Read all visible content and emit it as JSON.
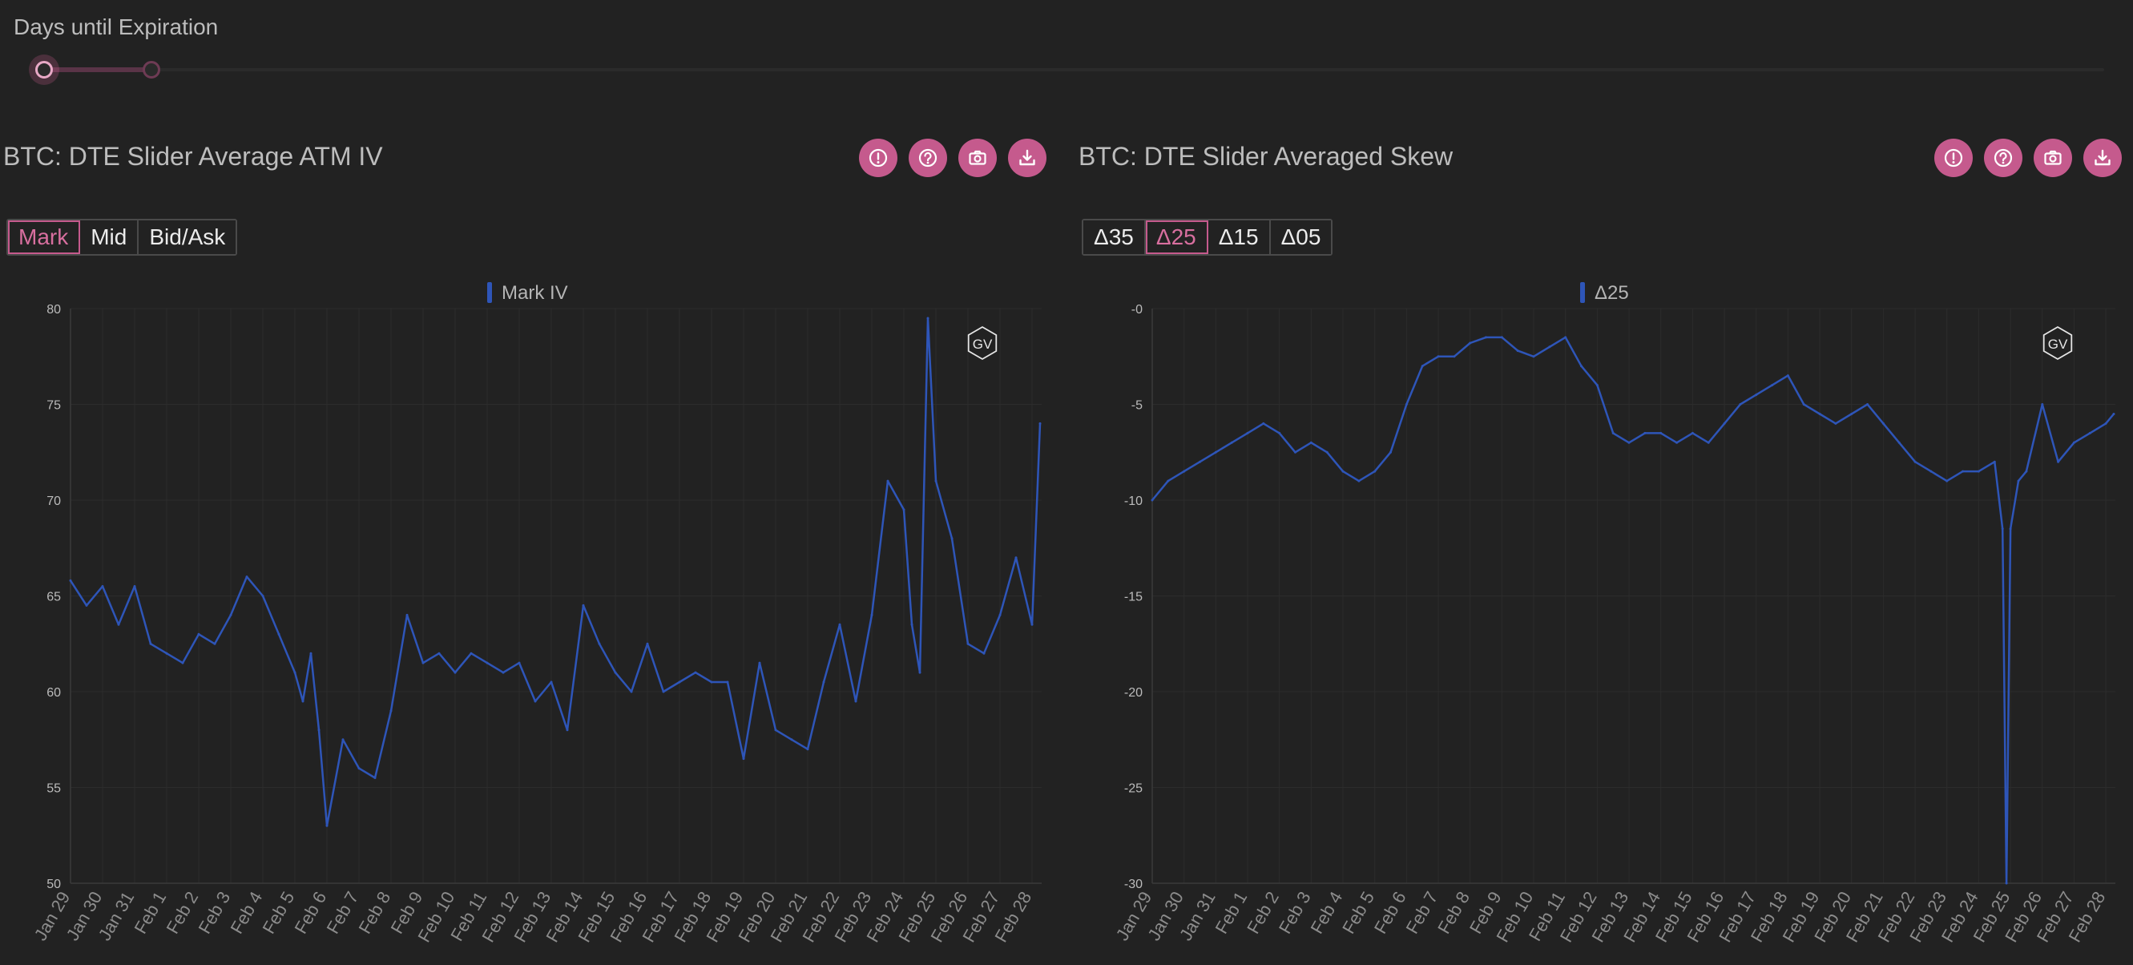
{
  "slider": {
    "label": "Days until Expiration"
  },
  "panels": [
    {
      "title": "BTC: DTE Slider Average ATM IV",
      "buttons": [
        {
          "label": "Mark",
          "active": true
        },
        {
          "label": "Mid",
          "active": false
        },
        {
          "label": "Bid/Ask",
          "active": false
        }
      ]
    },
    {
      "title": "BTC: DTE Slider Averaged Skew",
      "buttons": [
        {
          "label": "Δ35",
          "active": false
        },
        {
          "label": "Δ25",
          "active": true
        },
        {
          "label": "Δ15",
          "active": false
        },
        {
          "label": "Δ05",
          "active": false
        }
      ]
    }
  ],
  "toolbar_icons": [
    "info-icon",
    "help-icon",
    "camera-icon",
    "download-icon"
  ],
  "colors": {
    "accent": "#c55a8d",
    "series": "#2e55b8",
    "background": "#222222"
  },
  "watermark": "GV",
  "chart_data": [
    {
      "type": "line",
      "legend": "Mark IV",
      "ylim": [
        50,
        80
      ],
      "yticks": [
        50,
        55,
        60,
        65,
        70,
        75,
        80
      ],
      "xticks": [
        "Jan 29",
        "Jan 30",
        "Jan 31",
        "Feb 1",
        "Feb 2",
        "Feb 3",
        "Feb 4",
        "Feb 5",
        "Feb 6",
        "Feb 7",
        "Feb 8",
        "Feb 9",
        "Feb 10",
        "Feb 11",
        "Feb 12",
        "Feb 13",
        "Feb 14",
        "Feb 15",
        "Feb 16",
        "Feb 17",
        "Feb 18",
        "Feb 19",
        "Feb 20",
        "Feb 21",
        "Feb 22",
        "Feb 23",
        "Feb 24",
        "Feb 25",
        "Feb 26",
        "Feb 27",
        "Feb 28"
      ],
      "x_start": "Jan 29",
      "x_end": "Feb 28",
      "x": [
        "Jan 29 00:00",
        "Jan 29 12:00",
        "Jan 30 00:00",
        "Jan 30 12:00",
        "Jan 31 00:00",
        "Jan 31 12:00",
        "Feb 1 00:00",
        "Feb 1 12:00",
        "Feb 2 00:00",
        "Feb 2 12:00",
        "Feb 3 00:00",
        "Feb 3 12:00",
        "Feb 4 00:00",
        "Feb 4 12:00",
        "Feb 5 00:00",
        "Feb 5 06:00",
        "Feb 5 12:00",
        "Feb 5 18:00",
        "Feb 6 00:00",
        "Feb 6 12:00",
        "Feb 7 00:00",
        "Feb 7 12:00",
        "Feb 8 00:00",
        "Feb 8 12:00",
        "Feb 9 00:00",
        "Feb 9 12:00",
        "Feb 10 00:00",
        "Feb 10 12:00",
        "Feb 11 00:00",
        "Feb 11 12:00",
        "Feb 12 00:00",
        "Feb 12 12:00",
        "Feb 13 00:00",
        "Feb 13 12:00",
        "Feb 14 00:00",
        "Feb 14 12:00",
        "Feb 15 00:00",
        "Feb 15 12:00",
        "Feb 16 00:00",
        "Feb 16 12:00",
        "Feb 17 00:00",
        "Feb 17 12:00",
        "Feb 18 00:00",
        "Feb 18 12:00",
        "Feb 19 00:00",
        "Feb 19 12:00",
        "Feb 20 00:00",
        "Feb 20 12:00",
        "Feb 21 00:00",
        "Feb 21 12:00",
        "Feb 22 00:00",
        "Feb 22 12:00",
        "Feb 23 00:00",
        "Feb 23 12:00",
        "Feb 24 00:00",
        "Feb 24 06:00",
        "Feb 24 12:00",
        "Feb 24 18:00",
        "Feb 25 00:00",
        "Feb 25 12:00",
        "Feb 26 00:00",
        "Feb 26 12:00",
        "Feb 27 00:00",
        "Feb 27 12:00",
        "Feb 28 00:00",
        "Feb 28 06:00"
      ],
      "values": [
        65.8,
        64.5,
        65.5,
        63.5,
        65.5,
        62.5,
        62.0,
        61.5,
        63.0,
        62.5,
        64.0,
        66.0,
        65.0,
        63.0,
        61.0,
        59.5,
        62.0,
        58.0,
        53.0,
        57.5,
        56.0,
        55.5,
        59.0,
        64.0,
        61.5,
        62.0,
        61.0,
        62.0,
        61.5,
        61.0,
        61.5,
        59.5,
        60.5,
        58.0,
        64.5,
        62.5,
        61.0,
        60.0,
        62.5,
        60.0,
        60.5,
        61.0,
        60.5,
        60.5,
        56.5,
        61.5,
        58.0,
        57.5,
        57.0,
        60.5,
        63.5,
        59.5,
        64.0,
        71.0,
        69.5,
        63.5,
        61.0,
        79.5,
        71.0,
        68.0,
        62.5,
        62.0,
        64.0,
        67.0,
        63.5,
        74.0
      ]
    },
    {
      "type": "line",
      "legend": "Δ25",
      "ylim": [
        -30,
        0
      ],
      "yticks": [
        0,
        -5,
        -10,
        -15,
        -20,
        -25,
        -30
      ],
      "xticks": [
        "Jan 29",
        "Jan 30",
        "Jan 31",
        "Feb 1",
        "Feb 2",
        "Feb 3",
        "Feb 4",
        "Feb 5",
        "Feb 6",
        "Feb 7",
        "Feb 8",
        "Feb 9",
        "Feb 10",
        "Feb 11",
        "Feb 12",
        "Feb 13",
        "Feb 14",
        "Feb 15",
        "Feb 16",
        "Feb 17",
        "Feb 18",
        "Feb 19",
        "Feb 20",
        "Feb 21",
        "Feb 22",
        "Feb 23",
        "Feb 24",
        "Feb 25",
        "Feb 26",
        "Feb 27",
        "Feb 28"
      ],
      "x_start": "Jan 29",
      "x_end": "Feb 28",
      "x": [
        "Jan 29 00:00",
        "Jan 29 12:00",
        "Jan 30 00:00",
        "Jan 30 12:00",
        "Jan 31 00:00",
        "Jan 31 12:00",
        "Feb 1 00:00",
        "Feb 1 12:00",
        "Feb 2 00:00",
        "Feb 2 12:00",
        "Feb 3 00:00",
        "Feb 3 12:00",
        "Feb 4 00:00",
        "Feb 4 12:00",
        "Feb 5 00:00",
        "Feb 5 12:00",
        "Feb 6 00:00",
        "Feb 6 12:00",
        "Feb 7 00:00",
        "Feb 7 12:00",
        "Feb 8 00:00",
        "Feb 8 12:00",
        "Feb 9 00:00",
        "Feb 9 12:00",
        "Feb 10 00:00",
        "Feb 10 12:00",
        "Feb 11 00:00",
        "Feb 11 12:00",
        "Feb 12 00:00",
        "Feb 12 12:00",
        "Feb 13 00:00",
        "Feb 13 12:00",
        "Feb 14 00:00",
        "Feb 14 12:00",
        "Feb 15 00:00",
        "Feb 15 12:00",
        "Feb 16 00:00",
        "Feb 16 12:00",
        "Feb 17 00:00",
        "Feb 17 12:00",
        "Feb 18 00:00",
        "Feb 18 12:00",
        "Feb 19 00:00",
        "Feb 19 12:00",
        "Feb 20 00:00",
        "Feb 20 12:00",
        "Feb 21 00:00",
        "Feb 21 12:00",
        "Feb 22 00:00",
        "Feb 22 12:00",
        "Feb 23 00:00",
        "Feb 23 12:00",
        "Feb 24 00:00",
        "Feb 24 12:00",
        "Feb 24 18:00",
        "Feb 24 21:00",
        "Feb 25 00:00",
        "Feb 25 06:00",
        "Feb 25 12:00",
        "Feb 26 00:00",
        "Feb 26 12:00",
        "Feb 27 00:00",
        "Feb 27 12:00",
        "Feb 28 00:00",
        "Feb 28 06:00"
      ],
      "values": [
        -10.0,
        -9.0,
        -8.5,
        -8.0,
        -7.5,
        -7.0,
        -6.5,
        -6.0,
        -6.5,
        -7.5,
        -7.0,
        -7.5,
        -8.5,
        -9.0,
        -8.5,
        -7.5,
        -5.0,
        -3.0,
        -2.5,
        -2.5,
        -1.8,
        -1.5,
        -1.5,
        -2.2,
        -2.5,
        -2.0,
        -1.5,
        -3.0,
        -4.0,
        -6.5,
        -7.0,
        -6.5,
        -6.5,
        -7.0,
        -6.5,
        -7.0,
        -6.0,
        -5.0,
        -4.5,
        -4.0,
        -3.5,
        -5.0,
        -5.5,
        -6.0,
        -5.5,
        -5.0,
        -6.0,
        -7.0,
        -8.0,
        -8.5,
        -9.0,
        -8.5,
        -8.5,
        -8.0,
        -11.5,
        -30.0,
        -11.5,
        -9.0,
        -8.5,
        -5.0,
        -8.0,
        -7.0,
        -6.5,
        -6.0,
        -5.5
      ]
    }
  ]
}
